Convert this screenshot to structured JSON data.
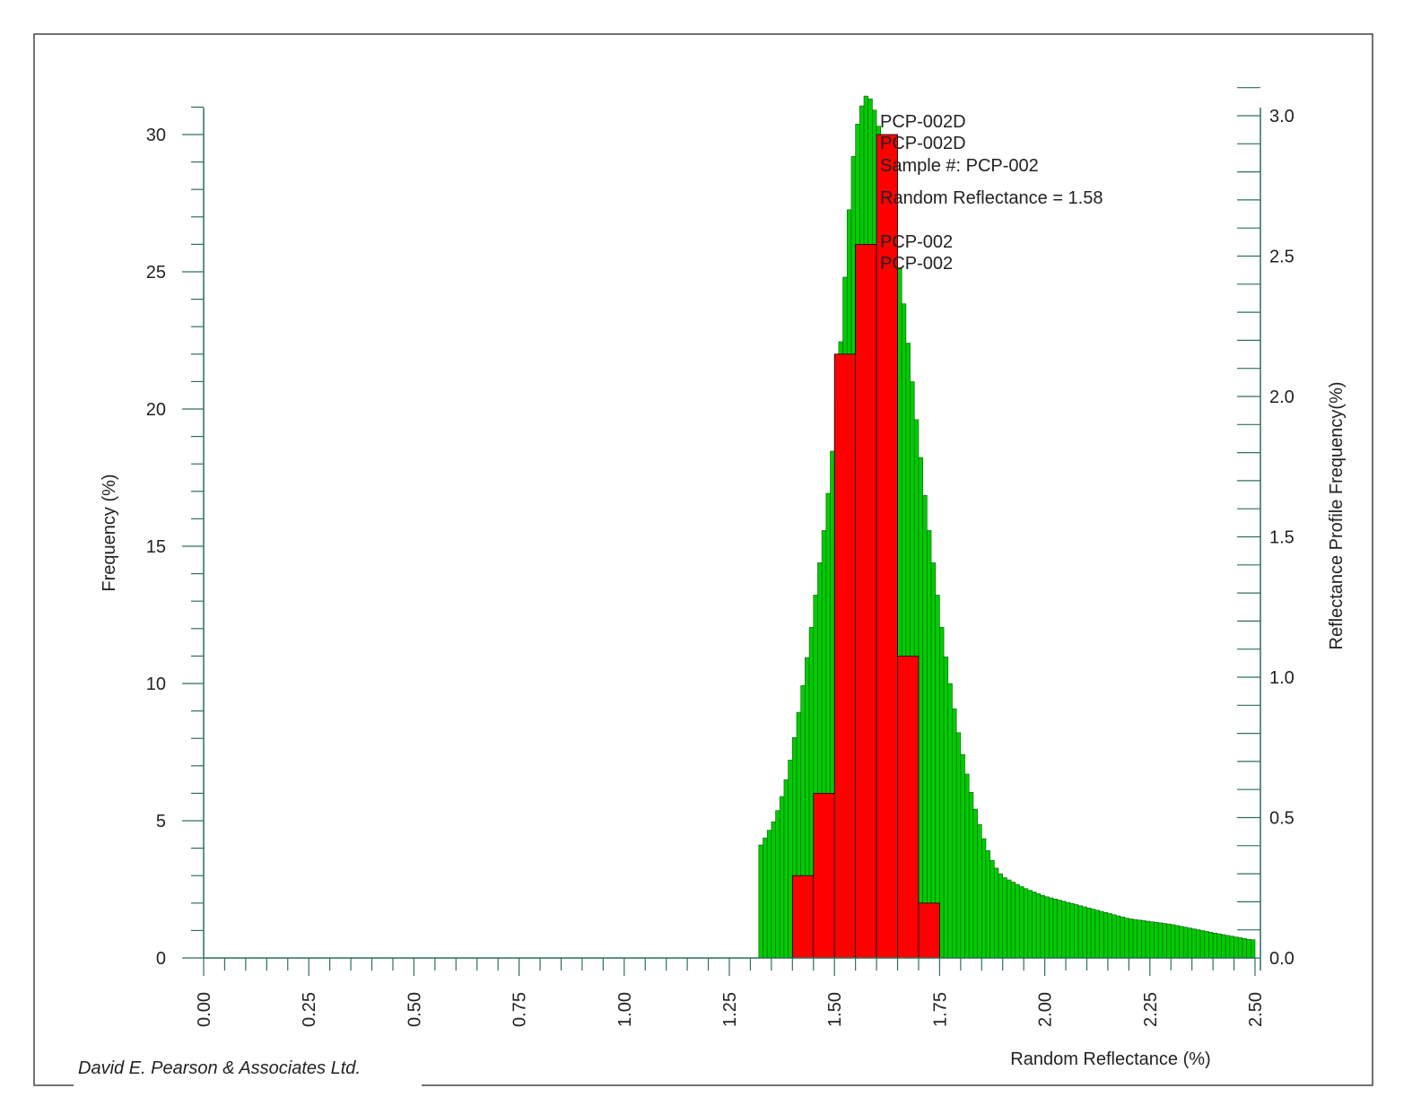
{
  "credit": "David E. Pearson & Associates Ltd.",
  "colors": {
    "profile": "#00cc00",
    "histogram": "#ff0000",
    "axis": "#2f6f5f",
    "frame": "#444444"
  },
  "annotations": [
    "PCP-002D",
    "PCP-002D",
    "Sample #:  PCP-002",
    "Random Reflectance = 1.58",
    "PCP-002",
    "PCP-002"
  ],
  "chart_data": {
    "type": "bar",
    "xlabel": "Random Reflectance (%)",
    "ylabel_left": "Frequency (%)",
    "ylabel_right": "Reflectance Profile Frequency(%)",
    "xlim": [
      0,
      2.5
    ],
    "ylim_left": [
      0,
      31
    ],
    "ylim_right": [
      0,
      3.1
    ],
    "x_ticks": [
      "0.00",
      "0.25",
      "0.50",
      "0.75",
      "1.00",
      "1.25",
      "1.50",
      "1.75",
      "2.00",
      "2.25",
      "2.50"
    ],
    "y_ticks_left": [
      "0",
      "5",
      "10",
      "15",
      "20",
      "25",
      "30"
    ],
    "y_ticks_right": [
      "0.0",
      "0.5",
      "1.0",
      "1.5",
      "2.0",
      "2.5",
      "3.0"
    ],
    "grid": false,
    "series": [
      {
        "axis": "left",
        "bin_width": 0.05,
        "bins": [
          {
            "x": 1.4,
            "value": 3
          },
          {
            "x": 1.45,
            "value": 6
          },
          {
            "x": 1.5,
            "value": 22
          },
          {
            "x": 1.55,
            "value": 26
          },
          {
            "x": 1.6,
            "value": 30
          },
          {
            "x": 1.65,
            "value": 11
          },
          {
            "x": 1.7,
            "value": 2
          }
        ]
      },
      {
        "axis": "right",
        "bin_width": 0.01,
        "profile_knots": [
          [
            1.32,
            0.39
          ],
          [
            1.34,
            0.44
          ],
          [
            1.36,
            0.5
          ],
          [
            1.38,
            0.6
          ],
          [
            1.4,
            0.74
          ],
          [
            1.42,
            0.92
          ],
          [
            1.44,
            1.12
          ],
          [
            1.46,
            1.35
          ],
          [
            1.48,
            1.58
          ],
          [
            1.5,
            1.88
          ],
          [
            1.52,
            2.3
          ],
          [
            1.53,
            2.55
          ],
          [
            1.54,
            2.78
          ],
          [
            1.55,
            2.93
          ],
          [
            1.56,
            3.01
          ],
          [
            1.57,
            3.06
          ],
          [
            1.58,
            3.08
          ],
          [
            1.6,
            3.0
          ],
          [
            1.62,
            2.85
          ],
          [
            1.64,
            2.62
          ],
          [
            1.66,
            2.4
          ],
          [
            1.68,
            2.12
          ],
          [
            1.7,
            1.85
          ],
          [
            1.72,
            1.58
          ],
          [
            1.74,
            1.35
          ],
          [
            1.76,
            1.12
          ],
          [
            1.78,
            0.93
          ],
          [
            1.8,
            0.76
          ],
          [
            1.82,
            0.62
          ],
          [
            1.84,
            0.5
          ],
          [
            1.86,
            0.4
          ],
          [
            1.88,
            0.33
          ],
          [
            1.9,
            0.29
          ],
          [
            1.95,
            0.25
          ],
          [
            2.0,
            0.22
          ],
          [
            2.1,
            0.18
          ],
          [
            2.2,
            0.14
          ],
          [
            2.3,
            0.12
          ],
          [
            2.4,
            0.09
          ],
          [
            2.49,
            0.065
          ]
        ]
      }
    ]
  }
}
